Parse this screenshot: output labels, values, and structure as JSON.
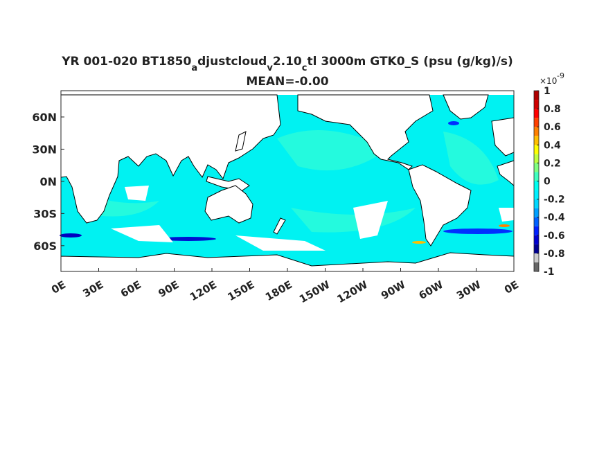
{
  "map": {
    "title_parts": [
      {
        "text": "YR 001-020 BT1850"
      },
      {
        "text": "a",
        "sub": true
      },
      {
        "text": "djustcloud"
      },
      {
        "text": "v",
        "sub": true
      },
      {
        "text": "2.10"
      },
      {
        "text": "c",
        "sub": true
      },
      {
        "text": "tl 3000m GTK0_S (psu (g/kg)/s)"
      }
    ],
    "subtitle": "MEAN=-0.00",
    "latlim": [
      -84,
      84.5
    ],
    "lonlim": [
      0,
      360
    ],
    "lat_ticks": [
      {
        "value": 60,
        "label": "60N"
      },
      {
        "value": 30,
        "label": "30N"
      },
      {
        "value": 0,
        "label": "0N"
      },
      {
        "value": -30,
        "label": "30S"
      },
      {
        "value": -60,
        "label": "60S"
      }
    ],
    "lon_ticks": [
      {
        "value": 0,
        "label": "0E"
      },
      {
        "value": 30,
        "label": "30E"
      },
      {
        "value": 60,
        "label": "60E"
      },
      {
        "value": 90,
        "label": "90E"
      },
      {
        "value": 120,
        "label": "120E"
      },
      {
        "value": 150,
        "label": "150E"
      },
      {
        "value": 180,
        "label": "180E"
      },
      {
        "value": 210,
        "label": "150W"
      },
      {
        "value": 240,
        "label": "120W"
      },
      {
        "value": 270,
        "label": "90W"
      },
      {
        "value": 300,
        "label": "60W"
      },
      {
        "value": 330,
        "label": "30W"
      },
      {
        "value": 360,
        "label": "0E"
      }
    ],
    "colorbar": {
      "multiplier": "×10",
      "exponent": "-9",
      "lim": [
        -1,
        1
      ],
      "ticks": [
        1,
        0.8,
        0.6,
        0.4,
        0.2,
        0,
        -0.2,
        -0.4,
        -0.6,
        -0.8,
        -1
      ],
      "colors": [
        "#666666",
        "#cccccc",
        "#00008f",
        "#0000d0",
        "#0020ff",
        "#0060ff",
        "#00a0ff",
        "#00d8ff",
        "#00f0ff",
        "#00fff0",
        "#40ffbf",
        "#80ff80",
        "#bfff40",
        "#ffff00",
        "#ffbf00",
        "#ff8000",
        "#ff4000",
        "#ff0000",
        "#d00000",
        "#b00000"
      ]
    }
  }
}
